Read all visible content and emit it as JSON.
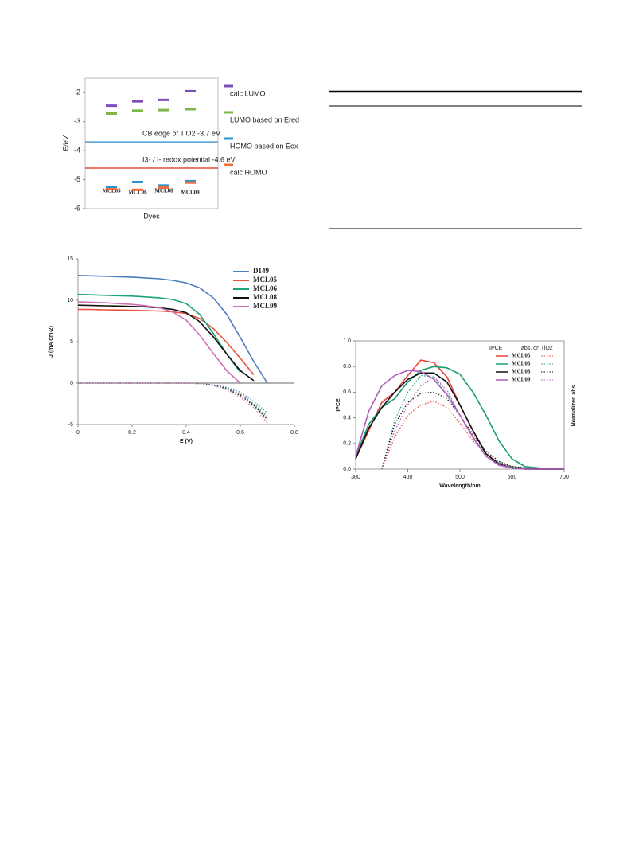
{
  "chart_data": [
    {
      "type": "level",
      "ylabel": "E/eV",
      "xlabel": "Dyes",
      "categories": [
        "MCL05",
        "MCL06",
        "MCL08",
        "MCL09"
      ],
      "ylim": [
        -6,
        -1.5
      ],
      "yticks": [
        -2,
        -3,
        -4,
        -5,
        -6
      ],
      "series": [
        {
          "name": "calc LUMO",
          "color": "#7b4fb5",
          "values": [
            -2.45,
            -2.3,
            -2.25,
            -1.95
          ]
        },
        {
          "name": "LUMO based on Ered",
          "color": "#7ab648",
          "values": [
            -2.72,
            -2.62,
            -2.6,
            -2.57
          ]
        },
        {
          "name": "HOMO based on Eox",
          "color": "#2a93c9",
          "values": [
            -5.25,
            -5.08,
            -5.2,
            -5.05
          ]
        },
        {
          "name": "calc HOMO",
          "color": "#ef6b3a",
          "values": [
            -5.33,
            -5.35,
            -5.27,
            -5.1
          ]
        }
      ],
      "hlines": [
        {
          "value": -3.7,
          "label": "CB edge of TiO2 -3.7 eV",
          "color": "#4a9fd8"
        },
        {
          "value": -4.6,
          "label": "I3- / I- redox potential -4.6 eV",
          "color": "#e0483a"
        }
      ]
    },
    {
      "type": "line",
      "xlabel": "E (V)",
      "ylabel": "J (mA cm-2)",
      "x": [
        0,
        0.05,
        0.1,
        0.15,
        0.2,
        0.25,
        0.3,
        0.35,
        0.4,
        0.45,
        0.5,
        0.55,
        0.6,
        0.65,
        0.7
      ],
      "xlim": [
        0,
        0.8
      ],
      "xticks": [
        0,
        0.2,
        0.4,
        0.6,
        0.8
      ],
      "ylim": [
        -5,
        15
      ],
      "yticks": [
        -5,
        0,
        5,
        10,
        15
      ],
      "series": [
        {
          "name": "D149",
          "color": "#4a7fc1",
          "values": [
            13,
            12.95,
            12.9,
            12.85,
            12.8,
            12.7,
            12.6,
            12.4,
            12.1,
            11.5,
            10.3,
            8.3,
            5.5,
            2.6,
            0
          ],
          "dark_values": [
            0,
            0,
            0,
            0,
            0,
            0,
            0,
            0,
            0,
            -0.05,
            -0.2,
            -0.5,
            -1.1,
            -2.2,
            -3.6
          ]
        },
        {
          "name": "MCL05",
          "color": "#e8553f",
          "values": [
            8.9,
            8.88,
            8.85,
            8.82,
            8.8,
            8.75,
            8.7,
            8.6,
            8.4,
            7.8,
            6.6,
            4.9,
            3.0,
            1.0,
            null
          ],
          "dark_values": [
            0,
            0,
            0,
            0,
            0,
            0,
            0,
            0,
            0,
            -0.05,
            -0.25,
            -0.6,
            -1.4,
            -2.6,
            -4.2
          ]
        },
        {
          "name": "MCL06",
          "color": "#1aa37a",
          "values": [
            10.7,
            10.65,
            10.6,
            10.55,
            10.5,
            10.4,
            10.3,
            10.1,
            9.6,
            8.3,
            6.0,
            3.5,
            1.3,
            null,
            null
          ],
          "dark_values": [
            0,
            0,
            0,
            0,
            0,
            0,
            0,
            0,
            0,
            -0.05,
            -0.25,
            -0.6,
            -1.3,
            -2.5,
            -4.0
          ]
        },
        {
          "name": "MCL08",
          "color": "#111111",
          "values": [
            9.4,
            9.37,
            9.33,
            9.3,
            9.25,
            9.2,
            9.1,
            8.9,
            8.5,
            7.4,
            5.6,
            3.5,
            1.5,
            0.3,
            null
          ],
          "dark_values": [
            0,
            0,
            0,
            0,
            0,
            0,
            0,
            0,
            0,
            -0.05,
            -0.25,
            -0.7,
            -1.5,
            -2.7,
            -4.4
          ]
        },
        {
          "name": "MCL09",
          "color": "#d070b8",
          "values": [
            9.8,
            9.75,
            9.7,
            9.6,
            9.5,
            9.35,
            9.1,
            8.6,
            7.6,
            5.8,
            3.6,
            1.5,
            0,
            null,
            null
          ],
          "dark_values": [
            0,
            0,
            0,
            0,
            0,
            0,
            0,
            0,
            0,
            -0.1,
            -0.3,
            -0.8,
            -1.7,
            -3.0,
            -4.8
          ]
        }
      ]
    },
    {
      "type": "line",
      "xlabel": "Wavelength/nm",
      "ylabel": "IPCE",
      "y2label": "Normalized abs.",
      "legend_headers": [
        "IPCE",
        "abs. on TiO2"
      ],
      "x": [
        300,
        325,
        350,
        375,
        400,
        425,
        450,
        475,
        500,
        525,
        550,
        575,
        600,
        625,
        650,
        675,
        700
      ],
      "xlim": [
        300,
        700
      ],
      "xticks": [
        300,
        400,
        500,
        600,
        700
      ],
      "ylim": [
        0,
        1
      ],
      "yticks": [
        {
          "value": 0,
          "label": "0.0"
        },
        0.2,
        0.4,
        0.6,
        0.8,
        {
          "value": 1,
          "label": "1.0"
        }
      ],
      "series": [
        {
          "name": "MCL05",
          "color": "#e8403a",
          "values": [
            0.08,
            0.3,
            0.52,
            0.6,
            0.73,
            0.85,
            0.83,
            0.72,
            0.5,
            0.3,
            0.12,
            0.04,
            0.01,
            0,
            0,
            0,
            0
          ],
          "abs_values": [
            null,
            null,
            0,
            0.25,
            0.42,
            0.5,
            0.53,
            0.48,
            0.36,
            0.22,
            0.12,
            0.05,
            0.02,
            0.01,
            0,
            0,
            0
          ]
        },
        {
          "name": "MCL06",
          "color": "#1a9e6e",
          "values": [
            0.1,
            0.35,
            0.48,
            0.55,
            0.68,
            0.77,
            0.8,
            0.79,
            0.74,
            0.6,
            0.42,
            0.22,
            0.08,
            0.02,
            0.01,
            0,
            0
          ],
          "abs_values": [
            null,
            null,
            0,
            0.38,
            0.6,
            0.73,
            0.72,
            0.6,
            0.42,
            0.25,
            0.12,
            0.05,
            0.02,
            0.01,
            0,
            0,
            0
          ]
        },
        {
          "name": "MCL08",
          "color": "#111111",
          "values": [
            0.08,
            0.32,
            0.48,
            0.6,
            0.7,
            0.75,
            0.75,
            0.68,
            0.5,
            0.3,
            0.12,
            0.04,
            0.01,
            0,
            0,
            0,
            0
          ],
          "abs_values": [
            null,
            null,
            0,
            0.35,
            0.52,
            0.59,
            0.6,
            0.55,
            0.42,
            0.27,
            0.14,
            0.06,
            0.02,
            0.01,
            0,
            0,
            0
          ]
        },
        {
          "name": "MCL09",
          "color": "#b05cc0",
          "values": [
            0.1,
            0.45,
            0.65,
            0.73,
            0.77,
            0.76,
            0.7,
            0.58,
            0.42,
            0.25,
            0.1,
            0.03,
            0.01,
            0,
            0,
            0,
            0
          ],
          "abs_values": [
            null,
            null,
            0,
            0.3,
            0.5,
            0.65,
            0.72,
            0.62,
            0.42,
            0.24,
            0.1,
            0.04,
            0.01,
            0,
            0,
            0,
            0
          ]
        }
      ]
    }
  ]
}
